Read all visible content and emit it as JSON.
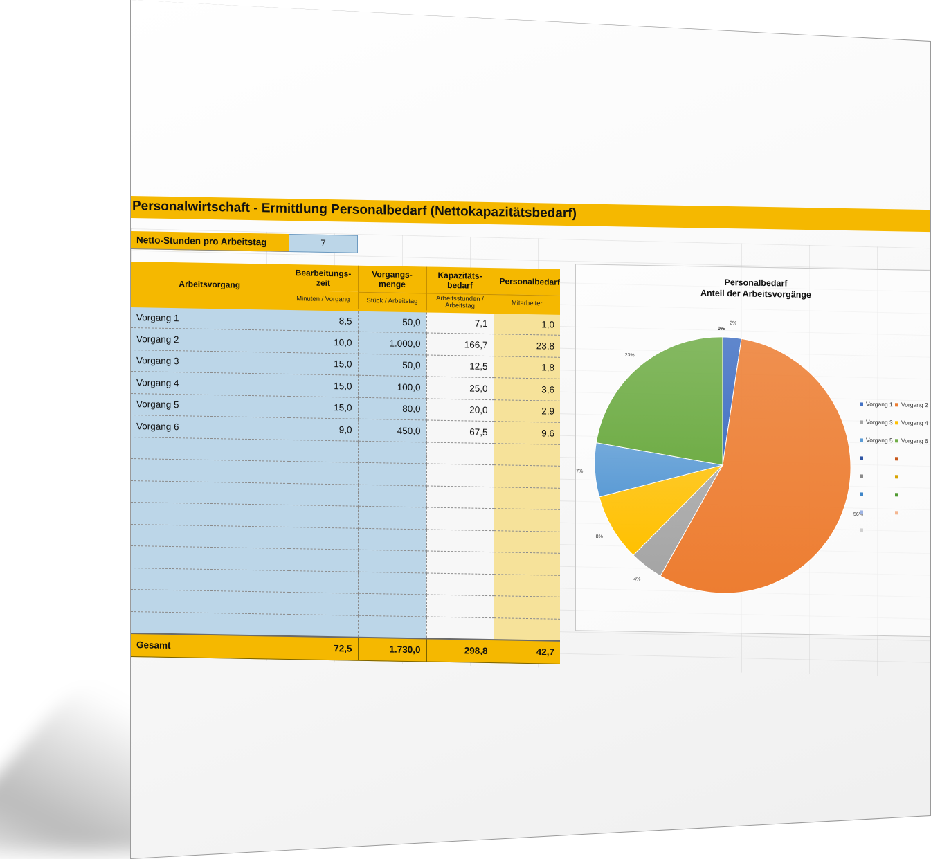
{
  "title": "Personalwirtschaft - Ermittlung Personalbedarf (Nettokapazitätsbedarf)",
  "netto": {
    "label": "Netto-Stunden pro Arbeitstag",
    "value": "7"
  },
  "table": {
    "headers": [
      "Arbeitsvorgang",
      "Bearbeitungs-zeit",
      "Vorgangs-menge",
      "Kapazitäts-bedarf",
      "Personalbedarf"
    ],
    "subheaders": [
      "",
      "Minuten / Vorgang",
      "Stück / Arbeitstag",
      "Arbeitsstunden / Arbeitstag",
      "Mitarbeiter"
    ],
    "rows": [
      [
        "Vorgang 1",
        "8,5",
        "50,0",
        "7,1",
        "1,0"
      ],
      [
        "Vorgang 2",
        "10,0",
        "1.000,0",
        "166,7",
        "23,8"
      ],
      [
        "Vorgang 3",
        "15,0",
        "50,0",
        "12,5",
        "1,8"
      ],
      [
        "Vorgang 4",
        "15,0",
        "100,0",
        "25,0",
        "3,6"
      ],
      [
        "Vorgang 5",
        "15,0",
        "80,0",
        "20,0",
        "2,9"
      ],
      [
        "Vorgang 6",
        "9,0",
        "450,0",
        "67,5",
        "9,6"
      ],
      [
        "",
        "",
        "",
        "",
        ""
      ],
      [
        "",
        "",
        "",
        "",
        ""
      ],
      [
        "",
        "",
        "",
        "",
        ""
      ],
      [
        "",
        "",
        "",
        "",
        ""
      ],
      [
        "",
        "",
        "",
        "",
        ""
      ],
      [
        "",
        "",
        "",
        "",
        ""
      ],
      [
        "",
        "",
        "",
        "",
        ""
      ],
      [
        "",
        "",
        "",
        "",
        ""
      ],
      [
        "",
        "",
        "",
        "",
        ""
      ]
    ],
    "total": [
      "Gesamt",
      "72,5",
      "1.730,0",
      "298,8",
      "42,7"
    ]
  },
  "chart_data": {
    "type": "pie",
    "title": "Personalbedarf",
    "subtitle": "Anteil der Arbeitsvorgänge",
    "categories": [
      "Vorgang 1",
      "Vorgang 2",
      "Vorgang 3",
      "Vorgang 4",
      "Vorgang 5",
      "Vorgang 6"
    ],
    "values": [
      1.0,
      23.8,
      1.8,
      3.6,
      2.9,
      9.6
    ],
    "percent_labels": [
      "2%",
      "56%",
      "4%",
      "8%",
      "7%",
      "23%"
    ],
    "extra_label": "0%",
    "colors": [
      "#4472c4",
      "#ed7d31",
      "#a5a5a5",
      "#ffc000",
      "#5b9bd5",
      "#70ad47"
    ],
    "legend_position": "right",
    "legend_extra_colors": [
      "#2f55a4",
      "#c8571a",
      "#8a8a8a",
      "#d8a300",
      "#3f86c8",
      "#4f9a31",
      "#9db3e3",
      "#f4b690",
      "#d0d0d0"
    ]
  },
  "colors": {
    "header": "#f5b800",
    "input_blue": "#bcd6e8",
    "result_yellow": "#f6e29a"
  }
}
